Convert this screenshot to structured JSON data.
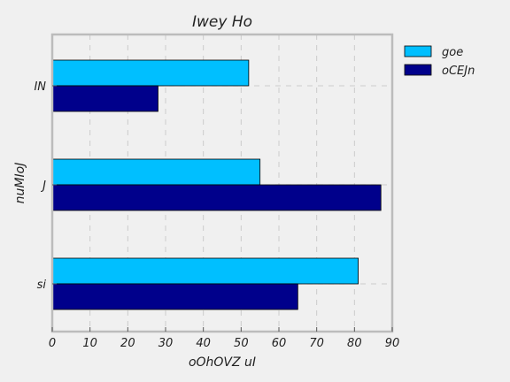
{
  "chart_data": {
    "type": "bar",
    "orientation": "horizontal",
    "title": "Iwey  Ho",
    "xlabel": "oOhOVZ uI",
    "ylabel": "nuMIoJ",
    "categories": [
      "IN",
      "J",
      "si"
    ],
    "series": [
      {
        "name": "goe",
        "values": [
          52,
          55,
          81
        ],
        "color": "#00bfff"
      },
      {
        "name": "oCEJn",
        "values": [
          28,
          87,
          65
        ],
        "color": "#00008b"
      }
    ],
    "xlim": [
      0,
      90
    ],
    "xticks": [
      0,
      10,
      20,
      30,
      40,
      50,
      60,
      70,
      80,
      90
    ],
    "grid": true,
    "legend_position": "outside-top-right"
  }
}
